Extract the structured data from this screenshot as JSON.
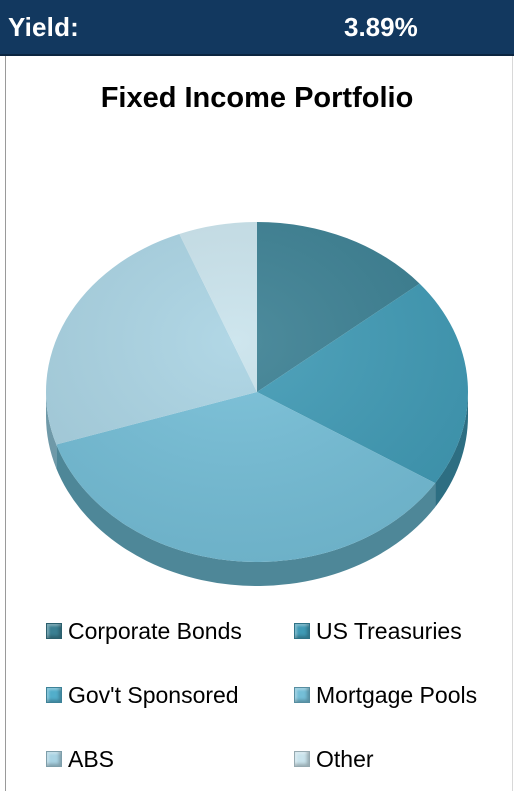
{
  "header": {
    "label": "Yield:",
    "value": "3.89%"
  },
  "chart_data": {
    "type": "pie",
    "title": "Fixed Income Portfolio",
    "categories": [
      "Corporate Bonds",
      "US Treasuries",
      "Gov't Sponsored",
      "Mortgage Pools",
      "ABS",
      "Other"
    ],
    "values": [
      14,
      20,
      0,
      36,
      24,
      6
    ],
    "colors": [
      "#3a7f92",
      "#3f9ab5",
      "#52aecb",
      "#74bed7",
      "#a9d3e3",
      "#c9e3ec"
    ],
    "depth_colors": [
      "#2d6270",
      "#2d6e82",
      "#377e94",
      "#4e8798",
      "#6f99a8",
      "#8aaab4"
    ],
    "legend_position": "bottom",
    "start_angle_deg": 0,
    "direction": "clockwise"
  }
}
